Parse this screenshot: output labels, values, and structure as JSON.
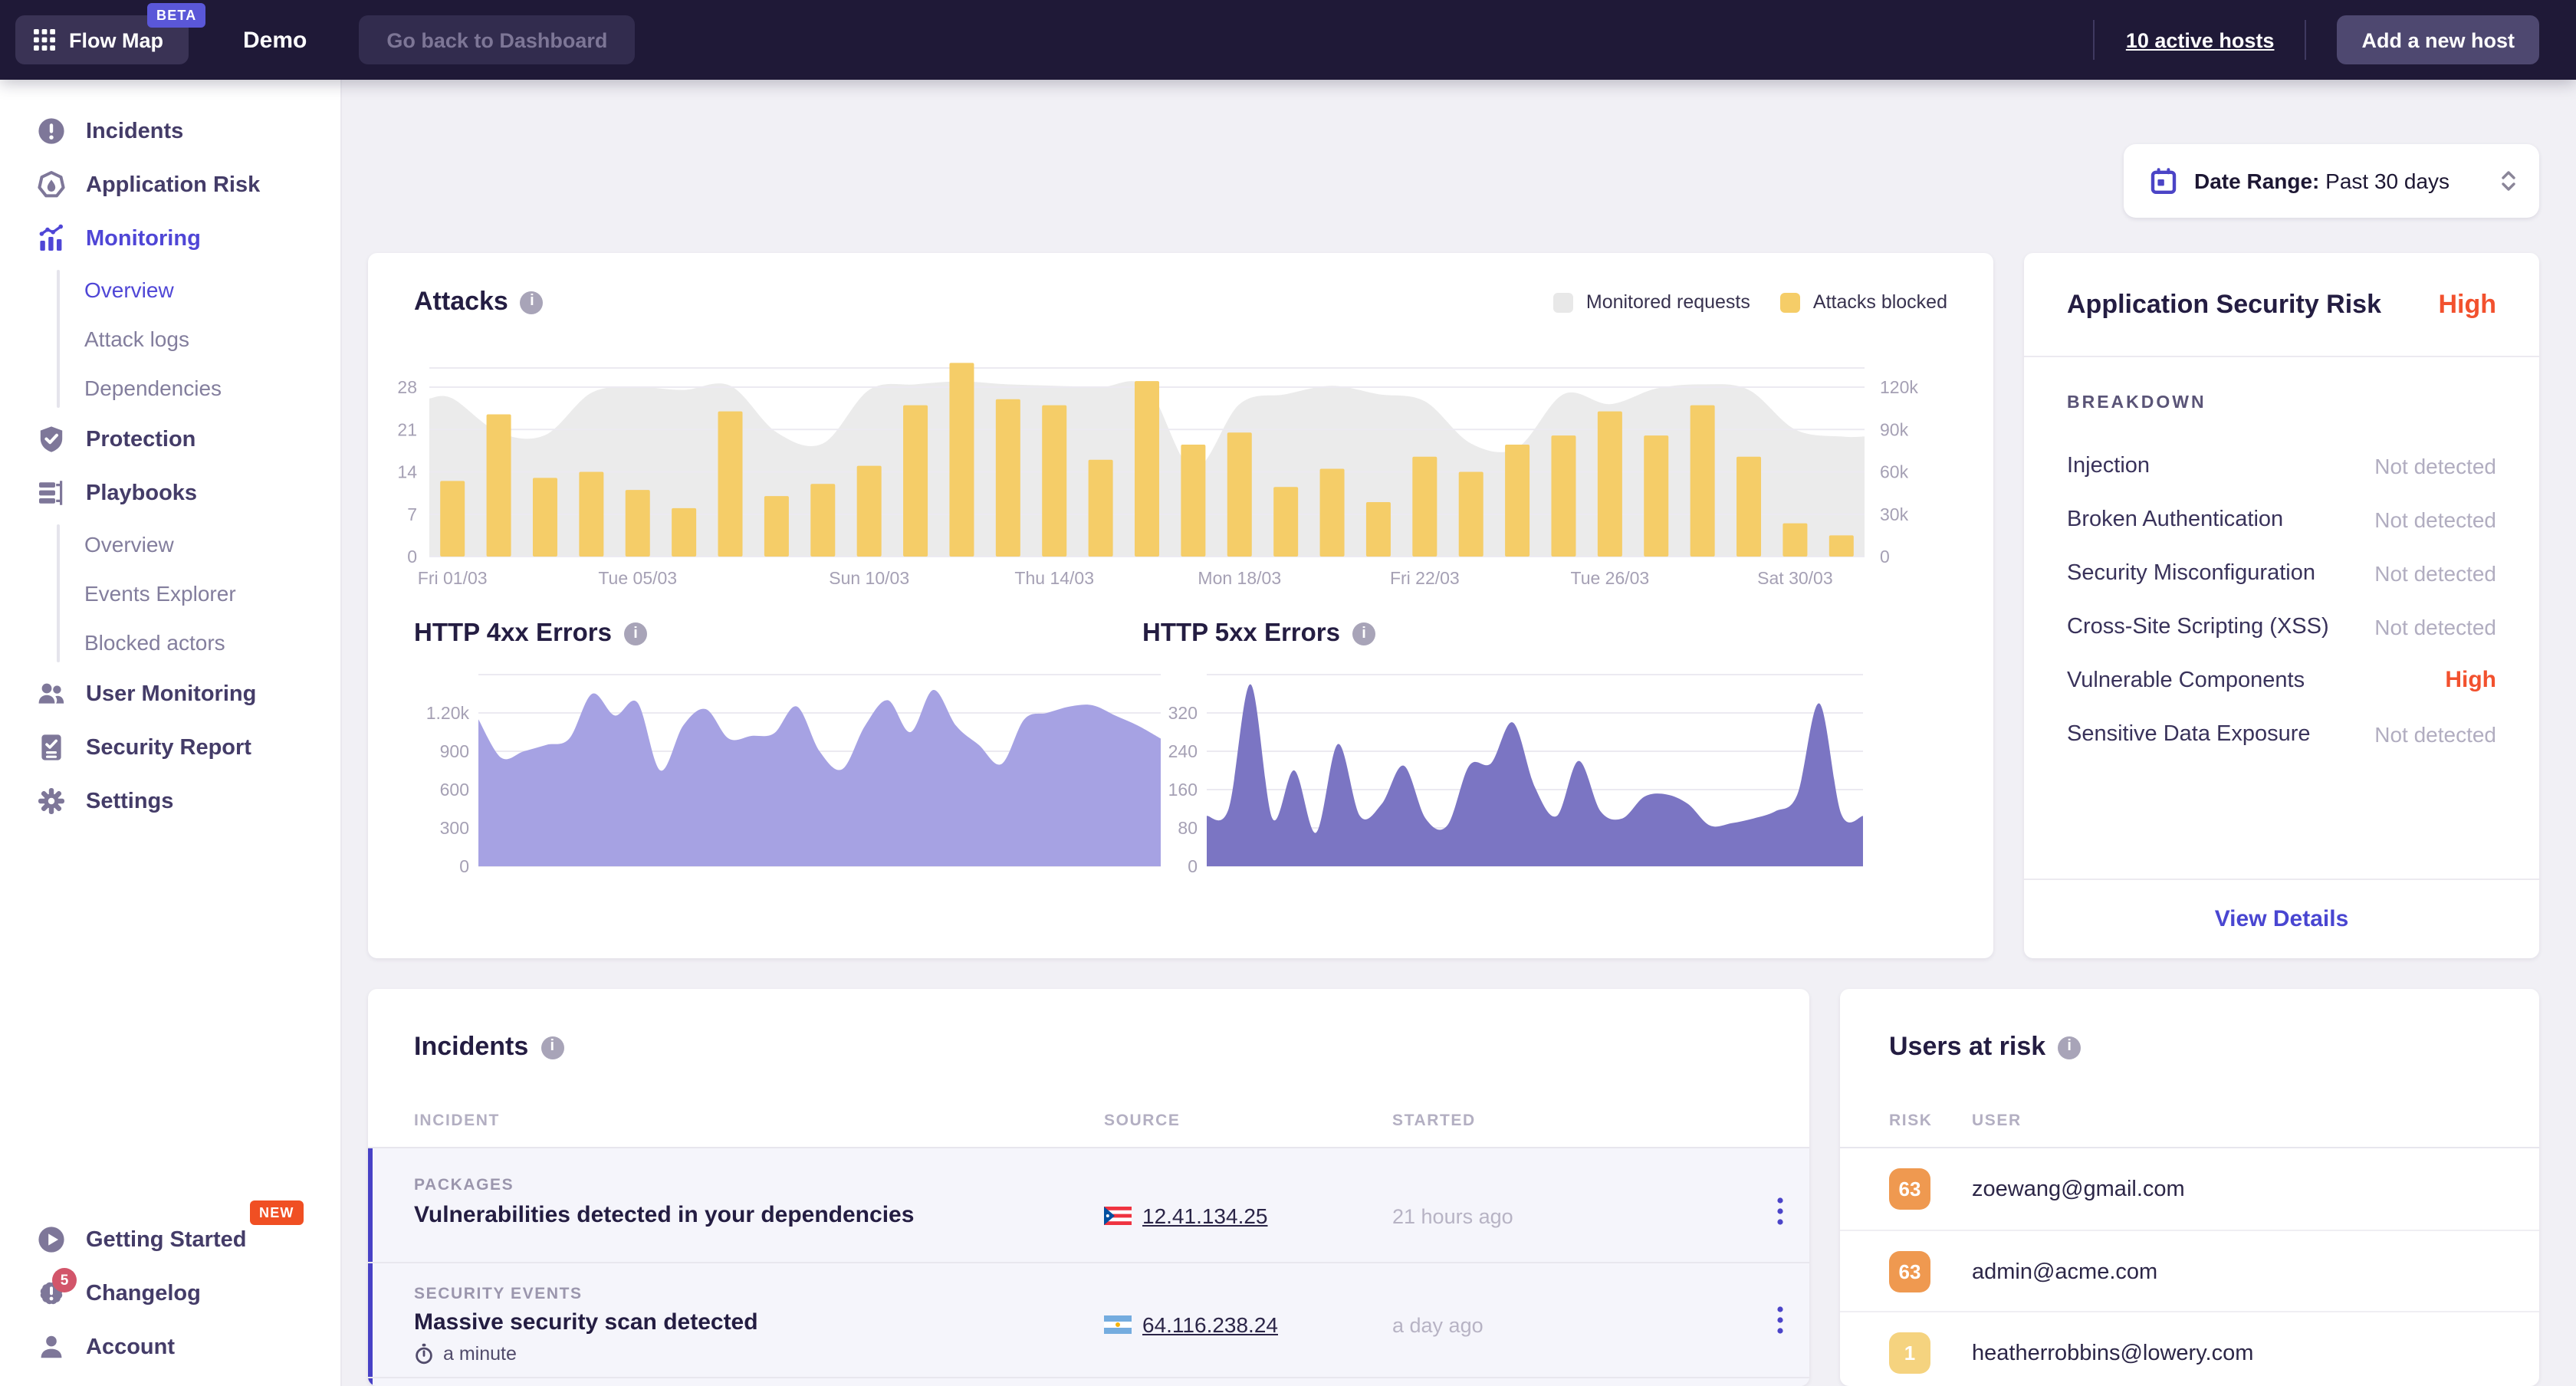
{
  "topbar": {
    "flow_map_label": "Flow Map",
    "beta_badge": "BETA",
    "app_title": "Demo",
    "go_back_label": "Go back to Dashboard",
    "active_hosts_label": "10 active hosts",
    "add_host_label": "Add a new host"
  },
  "sidebar": {
    "items": [
      {
        "label": "Incidents"
      },
      {
        "label": "Application Risk"
      },
      {
        "label": "Monitoring",
        "active": true
      },
      {
        "label": "Overview",
        "sub": true,
        "active": true
      },
      {
        "label": "Attack logs",
        "sub": true
      },
      {
        "label": "Dependencies",
        "sub": true
      },
      {
        "label": "Protection"
      },
      {
        "label": "Playbooks"
      },
      {
        "label": "Overview",
        "sub": true
      },
      {
        "label": "Events Explorer",
        "sub": true
      },
      {
        "label": "Blocked actors",
        "sub": true
      },
      {
        "label": "User Monitoring"
      },
      {
        "label": "Security Report"
      },
      {
        "label": "Settings"
      }
    ],
    "bottom_items": [
      {
        "label": "Getting Started",
        "badge": "NEW"
      },
      {
        "label": "Changelog",
        "count": "5"
      },
      {
        "label": "Account"
      }
    ]
  },
  "date_range": {
    "label": "Date Range:",
    "value": "Past 30 days"
  },
  "chart_data": [
    {
      "id": "attacks",
      "type": "bar",
      "subtype": "bar+area combo",
      "title": "Attacks",
      "legend": [
        {
          "name": "Monitored requests",
          "color": "#e8e8e8"
        },
        {
          "name": "Attacks blocked",
          "color": "#f5cd68"
        }
      ],
      "legend_position": "top-right",
      "grid": true,
      "x_tick_labels": [
        {
          "label": "Fri 01/03",
          "day": 1
        },
        {
          "label": "Tue 05/03",
          "day": 5
        },
        {
          "label": "Sun 10/03",
          "day": 10
        },
        {
          "label": "Thu 14/03",
          "day": 14
        },
        {
          "label": "Mon 18/03",
          "day": 18
        },
        {
          "label": "Fri 22/03",
          "day": 22
        },
        {
          "label": "Tue 26/03",
          "day": 26
        },
        {
          "label": "Sat 30/03",
          "day": 30
        }
      ],
      "left_axis": {
        "ticks": [
          0,
          7,
          14,
          21,
          28
        ],
        "ylim": [
          0,
          31
        ]
      },
      "right_axis": {
        "tick_labels": [
          "0",
          "30k",
          "60k",
          "90k",
          "120k"
        ],
        "tick_values_k": [
          0,
          30,
          60,
          90,
          120
        ]
      },
      "series": [
        {
          "name": "Attacks blocked",
          "style": "bar",
          "axis": "left",
          "color": "#f5cd68",
          "values": [
            12.5,
            23.5,
            13,
            14,
            11,
            8,
            24,
            10,
            12,
            15,
            25,
            32,
            26,
            25,
            16,
            29,
            18.5,
            20.5,
            11.5,
            14.5,
            9,
            16.5,
            14,
            18.5,
            20,
            24,
            20,
            25,
            16.5,
            5.5,
            3.5
          ]
        },
        {
          "name": "Monitored requests",
          "style": "area",
          "axis": "right",
          "color": "#ebebeb",
          "values_k": [
            112,
            88,
            86,
            116,
            120,
            118,
            121,
            88,
            80,
            118,
            122,
            124,
            122,
            121,
            120,
            120,
            62,
            108,
            115,
            121,
            115,
            110,
            80,
            77,
            115,
            108,
            119,
            122,
            118,
            90,
            85
          ]
        }
      ]
    },
    {
      "id": "http-4xx-errors",
      "type": "area",
      "title": "HTTP 4xx Errors",
      "fill": "#a6a2e3",
      "grid": true,
      "y_ticks": [
        "0",
        "300",
        "600",
        "900",
        "1.20k"
      ],
      "ylim": [
        0,
        1500
      ],
      "values": [
        1150,
        850,
        900,
        950,
        1000,
        1350,
        1180,
        1280,
        750,
        1100,
        1230,
        1000,
        1020,
        1040,
        1250,
        900,
        760,
        1100,
        1300,
        1050,
        1380,
        1100,
        950,
        800,
        1150,
        1200,
        1250,
        1260,
        1180,
        1100,
        1000
      ]
    },
    {
      "id": "http-5xx-errors",
      "type": "area",
      "title": "HTTP 5xx Errors",
      "fill": "#7b75c3",
      "grid": true,
      "y_ticks": [
        "0",
        "80",
        "160",
        "240",
        "320"
      ],
      "ylim": [
        0,
        400
      ],
      "values": [
        105,
        120,
        380,
        100,
        200,
        70,
        255,
        105,
        130,
        210,
        100,
        85,
        210,
        215,
        300,
        165,
        105,
        220,
        115,
        100,
        145,
        150,
        130,
        85,
        90,
        100,
        115,
        150,
        340,
        110,
        105
      ]
    }
  ],
  "risk_panel": {
    "title": "Application Security Risk",
    "level": "High",
    "breakdown_title": "BREAKDOWN",
    "rows": [
      {
        "label": "Injection",
        "value": "Not detected",
        "status": "none"
      },
      {
        "label": "Broken Authentication",
        "value": "Not detected",
        "status": "none"
      },
      {
        "label": "Security Misconfiguration",
        "value": "Not detected",
        "status": "none"
      },
      {
        "label": "Cross-Site Scripting (XSS)",
        "value": "Not detected",
        "status": "none"
      },
      {
        "label": "Vulnerable Components",
        "value": "High",
        "status": "high"
      },
      {
        "label": "Sensitive Data Exposure",
        "value": "Not detected",
        "status": "none"
      }
    ],
    "view_details_label": "View Details"
  },
  "incidents": {
    "title": "Incidents",
    "columns": [
      "INCIDENT",
      "SOURCE",
      "STARTED"
    ],
    "rows": [
      {
        "category": "PACKAGES",
        "title": "Vulnerabilities detected in your dependencies",
        "source_ip": "12.41.134.25",
        "source_flag": "puerto-rico",
        "started": "21 hours ago"
      },
      {
        "category": "SECURITY EVENTS",
        "title": "Massive security scan detected",
        "duration": "a minute",
        "source_ip": "64.116.238.24",
        "source_flag": "argentina",
        "started": "a day ago"
      }
    ]
  },
  "users_at_risk": {
    "title": "Users at risk",
    "columns": [
      "RISK",
      "USER"
    ],
    "rows": [
      {
        "risk": "63",
        "user": "zoewang@gmail.com",
        "badge_color": "#ef9950"
      },
      {
        "risk": "63",
        "user": "admin@acme.com",
        "badge_color": "#ef9950"
      },
      {
        "risk": "1",
        "user": "heatherrobbins@lowery.com",
        "badge_color": "#f5d37f"
      }
    ]
  },
  "colors": {
    "accent_indigo": "#4b44c8",
    "active_nav": "#4f46d6",
    "orange_high": "#f2512e",
    "bar_yellow": "#f5cd68",
    "area_gray": "#ebebeb",
    "area_4xx": "#a6a2e3",
    "area_5xx": "#7b75c3",
    "badge_orange": "#ef9950",
    "badge_yellow": "#f5d37f",
    "new_badge": "#f04f23",
    "topbar_bg": "#1f1937"
  }
}
